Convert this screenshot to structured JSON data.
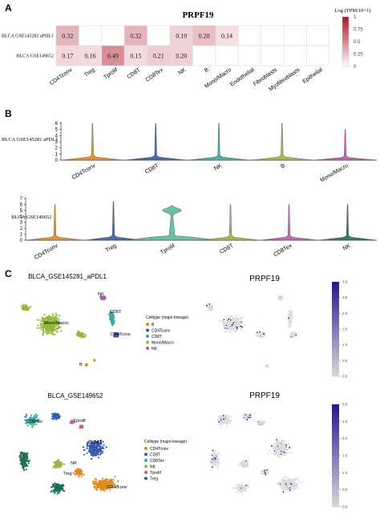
{
  "panel_letters": [
    "A",
    "B",
    "C"
  ],
  "chart_data": [
    {
      "type": "heatmap",
      "title": "PRPF19",
      "legend_title": "Log (TPM/10+1)",
      "legend_ticks": [
        "1",
        "0.75",
        "0.5",
        "0.25",
        "0"
      ],
      "color_low": "#ffffff",
      "color_high": "#b2182b",
      "scale_max": 1,
      "rows": [
        "BLCA GSE145281 aPDL1",
        "BLCA GSE149652"
      ],
      "columns": [
        "CD4Tconv",
        "Treg",
        "Tprolif",
        "CD8T",
        "CD8Tex",
        "NK",
        "B",
        "Mono/Macro",
        "Endothelial",
        "Fibroblasts",
        "Myofibroblasts",
        "Epithelial"
      ],
      "values": [
        [
          0.32,
          null,
          null,
          0.32,
          null,
          0.19,
          0.28,
          0.14,
          null,
          null,
          null,
          null
        ],
        [
          0.17,
          0.16,
          0.49,
          0.15,
          0.21,
          0.2,
          null,
          null,
          null,
          null,
          null,
          null
        ]
      ],
      "cell_labels": [
        [
          "0.32",
          "",
          "",
          "0.32",
          "",
          "0.19",
          "0.28",
          "0.14",
          "",
          "",
          "",
          ""
        ],
        [
          "0.17",
          "0.16",
          "0.49",
          "0.15",
          "0.21",
          "0.20",
          "",
          "",
          "",
          "",
          "",
          ""
        ]
      ]
    },
    {
      "type": "violin",
      "dataset": "BLCA GSE145281 aPDL1",
      "categories": [
        "CD4Tconv",
        "CD8T",
        "NK",
        "B",
        "Mono/Macro"
      ],
      "ymax": [
        6.0,
        6.0,
        6.0,
        6.0,
        5.0
      ],
      "colors": [
        "#e08a1e",
        "#3a5ba8",
        "#3ea8a0",
        "#92b93a",
        "#b05aa6"
      ],
      "ylim": [
        0,
        6
      ],
      "yticks": [
        "0",
        "1",
        "2",
        "3",
        "4",
        "5",
        "6"
      ]
    },
    {
      "type": "violin",
      "dataset": "BLCA GSE149652",
      "categories": [
        "CD4Tconv",
        "Treg",
        "Tprolif",
        "CD8T",
        "CD8Tex",
        "NK"
      ],
      "ymax": [
        6.0,
        6.5,
        5.9,
        6.0,
        6.0,
        6.0
      ],
      "colors": [
        "#e08a1e",
        "#3a5ba8",
        "#5bb79e",
        "#92b93a",
        "#c25aa8",
        "#1f6e5a"
      ],
      "ylim": [
        0,
        7
      ],
      "yticks": [
        "0",
        "1",
        "2",
        "3",
        "4",
        "5",
        "6",
        "7"
      ]
    },
    {
      "type": "scatter",
      "title": "BLCA_GSE145281_aPDL1",
      "legend_title": "Celltype (major-lineage)",
      "legend": [
        {
          "name": "B",
          "color": "#e08a1e"
        },
        {
          "name": "CD4Tconv",
          "color": "#3a5ba8"
        },
        {
          "name": "CD8T",
          "color": "#3ea8a0"
        },
        {
          "name": "Mono/Macro",
          "color": "#92b93a"
        },
        {
          "name": "NK",
          "color": "#b05aa6"
        }
      ],
      "cluster_labels": [
        "NK",
        "CD8T",
        "Mono/Macro",
        "CD4Tconv",
        "B"
      ]
    },
    {
      "type": "scatter",
      "title": "PRPF19",
      "colorbar_ticks": [
        "3.0",
        "2.5",
        "2.0",
        "1.5",
        "1.0",
        "0.5",
        "0.0"
      ],
      "color_low": "#dcdcdc",
      "color_high": "#2b1a8c",
      "colorbar_max": 3.0
    },
    {
      "type": "scatter",
      "title": "BLCA_GSE149652",
      "legend_title": "Celltype (major-lineage)",
      "legend": [
        {
          "name": "CD4Tconv",
          "color": "#e08a1e"
        },
        {
          "name": "CD8T",
          "color": "#3a5ba8"
        },
        {
          "name": "CD8Tex",
          "color": "#3ea8a0"
        },
        {
          "name": "NK",
          "color": "#92b93a"
        },
        {
          "name": "Tprolif",
          "color": "#c25aa8"
        },
        {
          "name": "Treg",
          "color": "#1f6e5a"
        }
      ],
      "cluster_labels": [
        "CD8Tex",
        "Tprolif",
        "NK",
        "CD8T",
        "Treg",
        "CD4Tconv"
      ]
    },
    {
      "type": "scatter",
      "title": "PRPF19",
      "colorbar_ticks": [
        "3.0",
        "2.5",
        "2.0",
        "1.5",
        "1.0",
        "0.5",
        "0.0"
      ],
      "color_low": "#dcdcdc",
      "color_high": "#2b1a8c",
      "colorbar_max": 3.0
    }
  ]
}
